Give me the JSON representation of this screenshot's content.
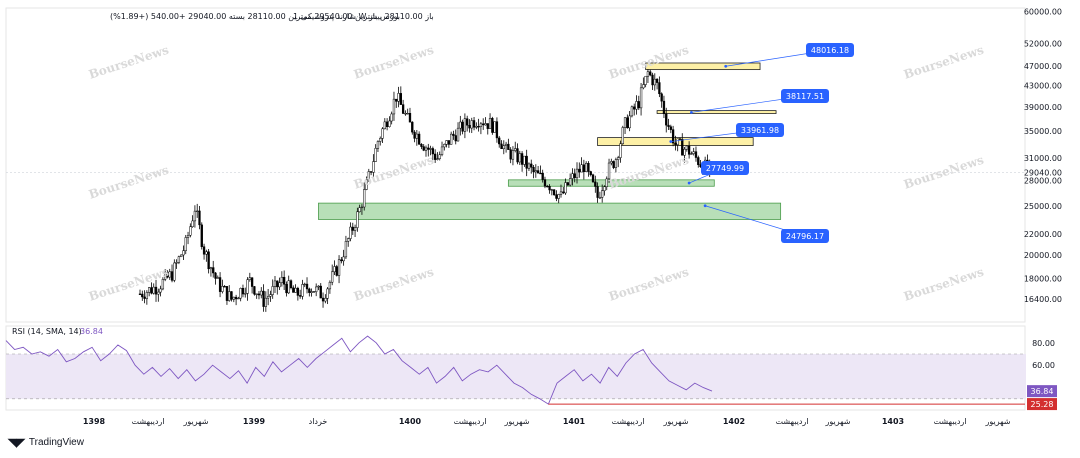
{
  "header": {
    "symbol": "1.شارند پتروشیمی W بورس باز",
    "ohlc_text": "باز 28110.00 بیشترین 29540.00 کمترین 28110.00 بسته 29040.00 +540.00 (+1.89%)"
  },
  "watermark_text": "BourseNews",
  "footer": {
    "brand": "TradingView"
  },
  "colors": {
    "up": "#ffffff",
    "down": "#000000",
    "yellow_zone": "#fdf0a6",
    "green_zone": "#b8dfb8",
    "label_bg": "#2962ff",
    "rsi_line": "#7e57c2",
    "rsi_band": "#ede7f6",
    "low_line": "#d32f2f"
  },
  "chart_data": [
    {
      "type": "candlestick",
      "title": "",
      "y_scale": "log",
      "ylim": [
        14800,
        61000
      ],
      "price_ticks": [
        60000.0,
        52000.0,
        47000.0,
        43000.0,
        39000.0,
        35000.0,
        31000.0,
        29040.0,
        28000.0,
        25000.0,
        22000.0,
        20000.0,
        18000.0,
        16400.0
      ],
      "current_price": 29040.0,
      "time_labels": [
        "1398",
        "اردیبهشت",
        "شهریور",
        "1399",
        "خرداد",
        "1400",
        "اردیبهشت",
        "شهریور",
        "1401",
        "اردیبهشت",
        "شهریور",
        "1402",
        "اردیبهشت",
        "شهریور",
        "1403",
        "اردیبهشت",
        "شهریور"
      ],
      "price_path": [
        [
          0,
          16800
        ],
        [
          8,
          17400
        ],
        [
          14,
          18400
        ],
        [
          20,
          21000
        ],
        [
          24,
          24800
        ],
        [
          28,
          20500
        ],
        [
          34,
          17600
        ],
        [
          40,
          16400
        ],
        [
          48,
          17800
        ],
        [
          54,
          16300
        ],
        [
          62,
          17800
        ],
        [
          68,
          16700
        ],
        [
          74,
          17400
        ],
        [
          80,
          16700
        ],
        [
          86,
          18800
        ],
        [
          92,
          22000
        ],
        [
          96,
          24600
        ],
        [
          100,
          28400
        ],
        [
          104,
          33500
        ],
        [
          108,
          37000
        ],
        [
          112,
          41000
        ],
        [
          118,
          36000
        ],
        [
          124,
          33000
        ],
        [
          130,
          31000
        ],
        [
          136,
          34000
        ],
        [
          142,
          36000
        ],
        [
          148,
          37000
        ],
        [
          154,
          36000
        ],
        [
          160,
          32000
        ],
        [
          166,
          31000
        ],
        [
          172,
          29000
        ],
        [
          178,
          27800
        ],
        [
          184,
          26000
        ],
        [
          188,
          28000
        ],
        [
          194,
          30000
        ],
        [
          200,
          26000
        ],
        [
          204,
          29000
        ],
        [
          208,
          31000
        ],
        [
          212,
          36000
        ],
        [
          218,
          40000
        ],
        [
          222,
          45500
        ],
        [
          226,
          43000
        ],
        [
          230,
          37000
        ],
        [
          234,
          33000
        ],
        [
          240,
          32000
        ],
        [
          246,
          30000
        ],
        [
          250,
          29040
        ]
      ],
      "zones": [
        {
          "kind": "resistance",
          "price_from": 46200,
          "price_to": 47600,
          "from": 221,
          "to": 271
        },
        {
          "kind": "resistance",
          "price_from": 37900,
          "price_to": 38400,
          "from": 226,
          "to": 278
        },
        {
          "kind": "resistance",
          "price_from": 32800,
          "price_to": 34000,
          "from": 200,
          "to": 268
        },
        {
          "kind": "support",
          "price_from": 27300,
          "price_to": 28100,
          "from": 161,
          "to": 251
        },
        {
          "kind": "support",
          "price_from": 23500,
          "price_to": 25300,
          "from": 78,
          "to": 280
        }
      ],
      "price_labels": [
        {
          "text": "48016.18",
          "price": 48016.18,
          "point_price": 46900,
          "point_x": 256
        },
        {
          "text": "38117.51",
          "price": 38117.51,
          "point_price": 38100,
          "point_x": 241
        },
        {
          "text": "33961.98",
          "price": 33961.98,
          "point_price": 33400,
          "point_x": 232
        },
        {
          "text": "27749.99",
          "price": 27749.99,
          "point_price": 27700,
          "point_x": 240
        },
        {
          "text": "24796.17",
          "price": 24796.17,
          "point_price": 25000,
          "point_x": 247
        }
      ]
    },
    {
      "type": "line",
      "title": "RSI (14, SMA, 14)",
      "current_value": 36.84,
      "low_value": 25.28,
      "ylim": [
        20,
        95
      ],
      "y_ticks": [
        80.0,
        60.0
      ],
      "band": [
        70,
        30
      ],
      "series": [
        {
          "values": [
            82,
            74,
            76,
            70,
            72,
            68,
            74,
            63,
            66,
            72,
            76,
            64,
            70,
            78,
            73,
            60,
            52,
            58,
            50,
            57,
            48,
            56,
            46,
            52,
            60,
            54,
            48,
            55,
            44,
            58,
            50,
            63,
            54,
            60,
            66,
            58,
            66,
            72,
            78,
            84,
            72,
            80,
            86,
            80,
            70,
            74,
            64,
            58,
            52,
            58,
            44,
            50,
            58,
            46,
            52,
            56,
            54,
            60,
            52,
            44,
            40,
            34,
            30,
            25.28,
            44,
            50,
            56,
            46,
            52,
            44,
            58,
            50,
            62,
            70,
            74,
            62,
            54,
            46,
            42,
            38,
            44,
            40,
            36.84
          ]
        }
      ]
    }
  ]
}
